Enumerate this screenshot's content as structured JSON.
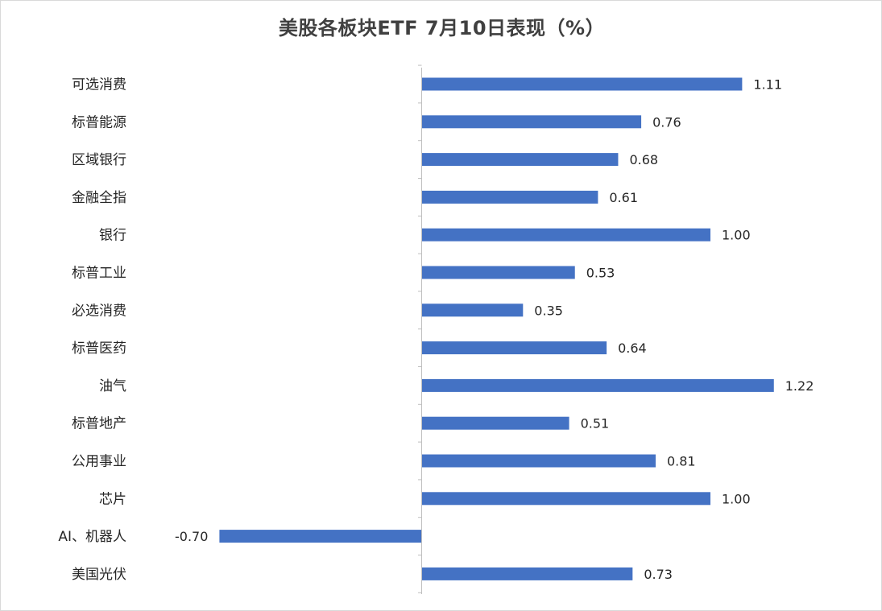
{
  "chart_data": {
    "type": "bar",
    "orientation": "horizontal",
    "title": "美股各板块ETF  7月10日表现（%）",
    "categories": [
      "可选消费",
      "标普能源",
      "区域银行",
      "金融全指",
      "银行",
      "标普工业",
      "必选消费",
      "标普医药",
      "油气",
      "标普地产",
      "公用事业",
      "芯片",
      "AI、机器人",
      "美国光伏"
    ],
    "values": [
      1.11,
      0.76,
      0.68,
      0.61,
      1.0,
      0.53,
      0.35,
      0.64,
      1.22,
      0.51,
      0.81,
      1.0,
      -0.7,
      0.73
    ],
    "value_labels": [
      "1.11",
      "0.76",
      "0.68",
      "0.61",
      "1.00",
      "0.53",
      "0.35",
      "0.64",
      "1.22",
      "0.51",
      "0.81",
      "1.00",
      "-0.70",
      "0.73"
    ],
    "xlim": [
      -0.7,
      1.22
    ],
    "grid": false,
    "legend": "none",
    "colors": {
      "bar": "#4472c4",
      "axis": "#bfbfbf",
      "text": "#262626",
      "title": "#404040"
    }
  }
}
